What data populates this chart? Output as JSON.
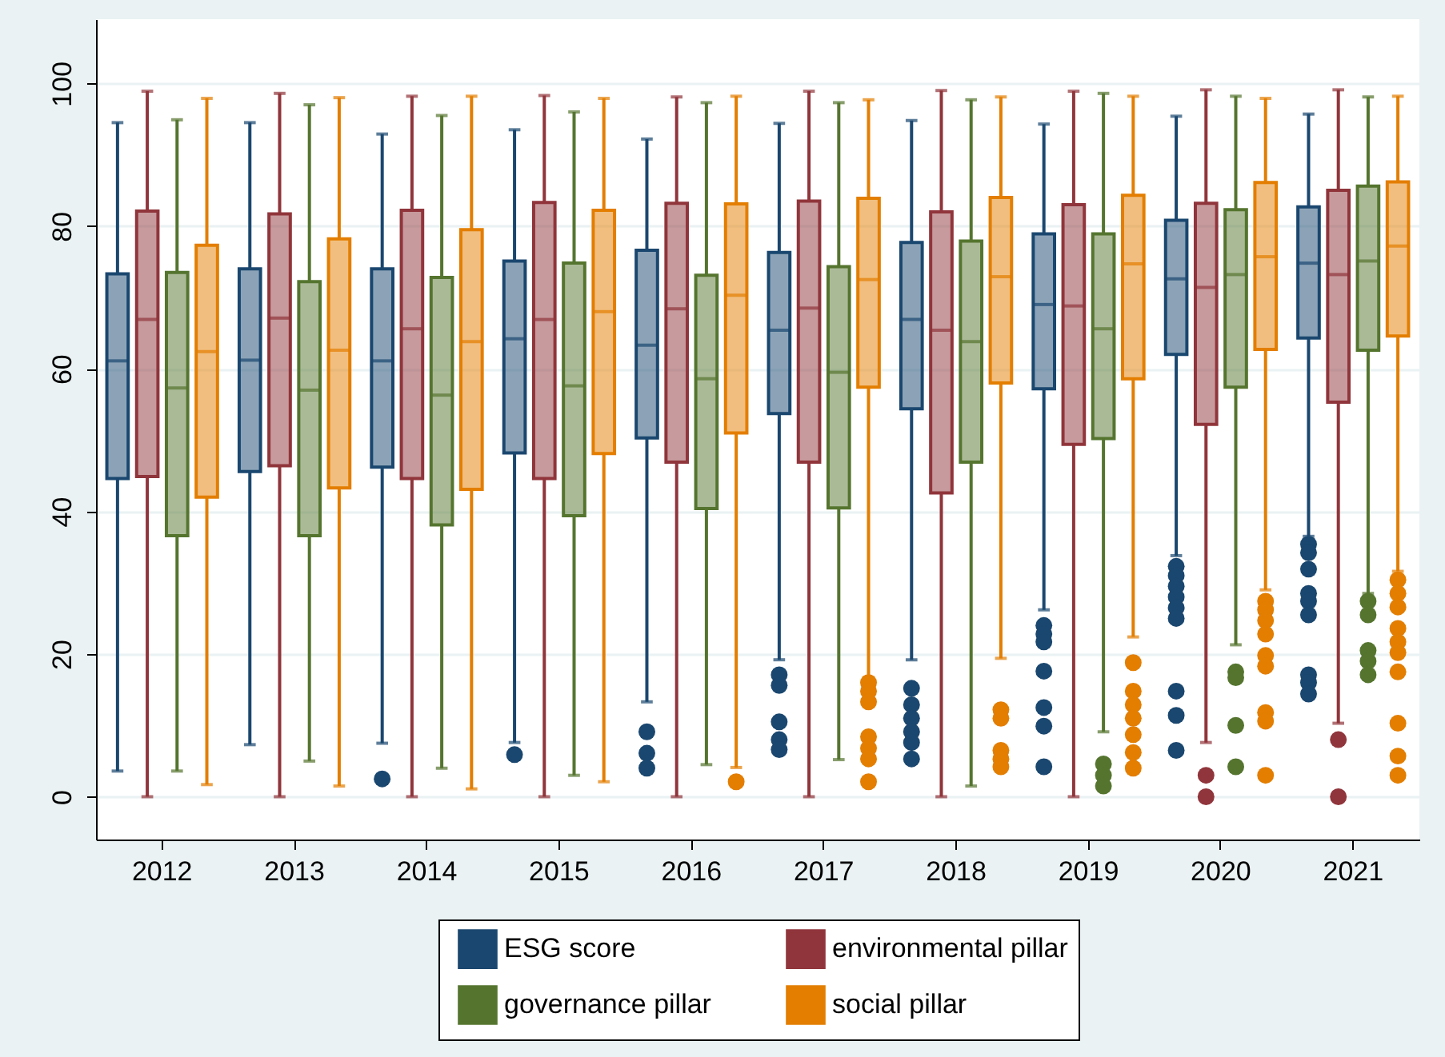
{
  "chart_data": {
    "type": "box",
    "categories": [
      "2012",
      "2013",
      "2014",
      "2015",
      "2016",
      "2017",
      "2018",
      "2019",
      "2020",
      "2021"
    ],
    "ylim": [
      -6,
      109
    ],
    "yticks": [
      0,
      20,
      40,
      60,
      80,
      100
    ],
    "grid": "y",
    "legend": "bottom",
    "series": [
      {
        "name": "ESG score",
        "color": "#1a476f",
        "boxes": [
          {
            "low": 3.6,
            "q1": 44.6,
            "median": 61.1,
            "q3": 73.3,
            "high": 94.5
          },
          {
            "low": 7.3,
            "q1": 45.6,
            "median": 61.2,
            "q3": 74,
            "high": 94.5
          },
          {
            "low": 7.5,
            "q1": 46.2,
            "median": 61.1,
            "q3": 74,
            "high": 92.9,
            "outliers": [
              2.5
            ]
          },
          {
            "low": 7.6,
            "q1": 48.2,
            "median": 64.2,
            "q3": 75.1,
            "high": 93.5,
            "outliers": [
              5.9
            ]
          },
          {
            "low": 13.3,
            "q1": 50.3,
            "median": 63.3,
            "q3": 76.6,
            "high": 92.2,
            "outliers": [
              9.1,
              6.1,
              4
            ]
          },
          {
            "low": 19.2,
            "q1": 53.7,
            "median": 65.4,
            "q3": 76.3,
            "high": 94.4,
            "outliers": [
              17.1,
              15.6,
              10.5,
              8,
              6.6
            ]
          },
          {
            "low": 19.2,
            "q1": 54.4,
            "median": 66.9,
            "q3": 77.7,
            "high": 94.8,
            "outliers": [
              15.2,
              12.9,
              11,
              9.1,
              7.6,
              5.3
            ]
          },
          {
            "low": 26.2,
            "q1": 57.2,
            "median": 69,
            "q3": 78.9,
            "high": 94.3,
            "outliers": [
              24,
              22.8,
              21.7,
              17.6,
              12.5,
              9.9,
              4.2
            ]
          },
          {
            "low": 33.8,
            "q1": 62,
            "median": 72.6,
            "q3": 80.8,
            "high": 95.4,
            "outliers": [
              32.3,
              31,
              29.5,
              28,
              26.5,
              25,
              14.8,
              11.4,
              6.5
            ]
          },
          {
            "low": 36.5,
            "q1": 64.3,
            "median": 74.8,
            "q3": 82.7,
            "high": 95.7,
            "outliers": [
              35.4,
              34.2,
              31.9,
              28.5,
              27.4,
              25.5,
              17.1,
              16,
              14.4
            ]
          }
        ]
      },
      {
        "name": "environmental pillar",
        "color": "#90353b",
        "boxes": [
          {
            "low": 0,
            "q1": 44.9,
            "median": 66.9,
            "q3": 82.1,
            "high": 98.9
          },
          {
            "low": 0,
            "q1": 46.4,
            "median": 67.1,
            "q3": 81.7,
            "high": 98.6
          },
          {
            "low": 0,
            "q1": 44.6,
            "median": 65.6,
            "q3": 82.2,
            "high": 98.2
          },
          {
            "low": 0,
            "q1": 44.6,
            "median": 66.9,
            "q3": 83.3,
            "high": 98.3
          },
          {
            "low": 0,
            "q1": 46.9,
            "median": 68.4,
            "q3": 83.2,
            "high": 98.1
          },
          {
            "low": 0,
            "q1": 46.9,
            "median": 68.5,
            "q3": 83.5,
            "high": 98.9
          },
          {
            "low": 0,
            "q1": 42.6,
            "median": 65.4,
            "q3": 82,
            "high": 99
          },
          {
            "low": 0,
            "q1": 49.4,
            "median": 68.8,
            "q3": 83,
            "high": 98.9
          },
          {
            "low": 7.6,
            "q1": 52.2,
            "median": 71.4,
            "q3": 83.2,
            "high": 99.1,
            "outliers": [
              3,
              0
            ]
          },
          {
            "low": 10.3,
            "q1": 55.3,
            "median": 73.2,
            "q3": 85,
            "high": 99.1,
            "outliers": [
              8,
              0
            ]
          }
        ]
      },
      {
        "name": "governance pillar",
        "color": "#55752f",
        "boxes": [
          {
            "low": 3.6,
            "q1": 36.6,
            "median": 57.3,
            "q3": 73.5,
            "high": 94.9
          },
          {
            "low": 5,
            "q1": 36.6,
            "median": 57,
            "q3": 72.2,
            "high": 97
          },
          {
            "low": 4,
            "q1": 38.1,
            "median": 56.3,
            "q3": 72.8,
            "high": 95.5
          },
          {
            "low": 3,
            "q1": 39.4,
            "median": 57.6,
            "q3": 74.8,
            "high": 96
          },
          {
            "low": 4.5,
            "q1": 40.4,
            "median": 58.6,
            "q3": 73.1,
            "high": 97.3
          },
          {
            "low": 5.2,
            "q1": 40.5,
            "median": 59.5,
            "q3": 74.3,
            "high": 97.3
          },
          {
            "low": 1.5,
            "q1": 46.9,
            "median": 63.8,
            "q3": 77.9,
            "high": 97.7
          },
          {
            "low": 9.1,
            "q1": 50.2,
            "median": 65.6,
            "q3": 78.9,
            "high": 98.6,
            "outliers": [
              4.6,
              3,
              1.5
            ]
          },
          {
            "low": 21.3,
            "q1": 57.4,
            "median": 73.2,
            "q3": 82.3,
            "high": 98.2,
            "outliers": [
              17.5,
              16.7,
              10,
              4.2
            ]
          },
          {
            "low": 28.5,
            "q1": 62.6,
            "median": 75.1,
            "q3": 85.6,
            "high": 98.1,
            "outliers": [
              27.4,
              25.5,
              20.5,
              19,
              17.1
            ]
          }
        ]
      },
      {
        "name": "social pillar",
        "color": "#e37e00",
        "boxes": [
          {
            "low": 1.7,
            "q1": 42,
            "median": 62.4,
            "q3": 77.3,
            "high": 97.9
          },
          {
            "low": 1.5,
            "q1": 43.3,
            "median": 62.6,
            "q3": 78.2,
            "high": 98
          },
          {
            "low": 1.1,
            "q1": 43.1,
            "median": 63.8,
            "q3": 79.5,
            "high": 98.2
          },
          {
            "low": 2.1,
            "q1": 48.1,
            "median": 68,
            "q3": 82.2,
            "high": 97.9
          },
          {
            "low": 4.1,
            "q1": 51,
            "median": 70.3,
            "q3": 83.1,
            "high": 98.2,
            "outliers": [
              2.1
            ]
          },
          {
            "low": 16.7,
            "q1": 57.4,
            "median": 72.5,
            "q3": 83.9,
            "high": 97.7,
            "outliers": [
              16,
              14.8,
              13.3,
              8.4,
              6.8,
              5.3,
              2.1
            ]
          },
          {
            "low": 19.4,
            "q1": 58,
            "median": 72.9,
            "q3": 84,
            "high": 98.1,
            "outliers": [
              12.2,
              11,
              6.5,
              5.3,
              4.2
            ]
          },
          {
            "low": 22.4,
            "q1": 58.6,
            "median": 74.7,
            "q3": 84.3,
            "high": 98.2,
            "outliers": [
              18.8,
              14.8,
              12.9,
              11,
              8.7,
              6.2,
              4
            ]
          },
          {
            "low": 29,
            "q1": 62.7,
            "median": 75.7,
            "q3": 86.1,
            "high": 97.9,
            "outliers": [
              27.4,
              26.2,
              24.7,
              22.8,
              19.8,
              18.3,
              11.8,
              10.6,
              3
            ]
          },
          {
            "low": 31.6,
            "q1": 64.6,
            "median": 77.2,
            "q3": 86.2,
            "high": 98.2,
            "outliers": [
              30.4,
              28.5,
              26.6,
              23.6,
              21.7,
              20.2,
              17.5,
              10.3,
              5.7,
              3
            ]
          }
        ]
      }
    ]
  }
}
